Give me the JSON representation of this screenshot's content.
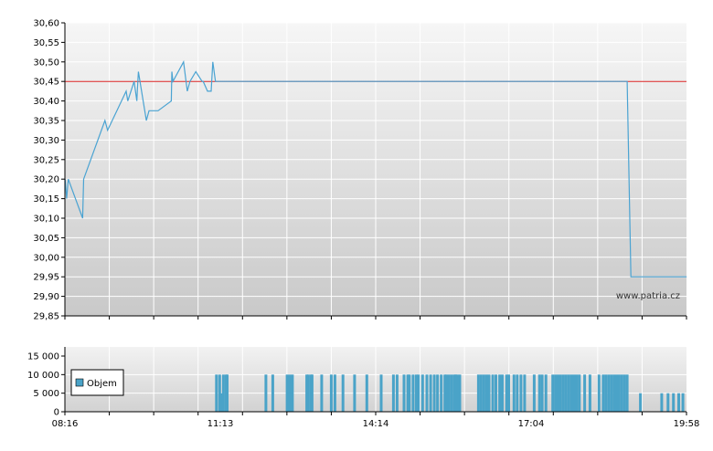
{
  "chart_data": [
    {
      "type": "line",
      "x_ticks": [
        "08:16",
        "11:13",
        "14:14",
        "17:04",
        "19:58"
      ],
      "y_ticks": [
        "30,60",
        "30,55",
        "30,50",
        "30,45",
        "30,40",
        "30,35",
        "30,30",
        "30,25",
        "30,20",
        "30,15",
        "30,10",
        "30,05",
        "30,00",
        "29,95",
        "29,90",
        "29,85"
      ],
      "ylim": [
        29.85,
        30.6
      ],
      "xlim_hours": [
        8.2667,
        19.9667
      ],
      "reference_line": 30.45,
      "watermark": "www.patria.cz",
      "grid": true,
      "series": [
        {
          "x": [
            8.27,
            8.3,
            8.33,
            8.6,
            8.62,
            9.02,
            9.07,
            9.42,
            9.45,
            9.57,
            9.62,
            9.63,
            9.65,
            9.8,
            9.85,
            10.0,
            10.02,
            10.27,
            10.28,
            10.3,
            10.5,
            10.57,
            10.62,
            10.73,
            10.85,
            10.87,
            10.95,
            11.02,
            11.05,
            11.1,
            18.85,
            18.92,
            19.97
          ],
          "y": [
            30.2,
            30.15,
            30.2,
            30.1,
            30.2,
            30.35,
            30.325,
            30.425,
            30.4,
            30.45,
            30.4,
            30.425,
            30.475,
            30.35,
            30.375,
            30.375,
            30.375,
            30.4,
            30.475,
            30.45,
            30.5,
            30.425,
            30.45,
            30.475,
            30.45,
            30.45,
            30.425,
            30.425,
            30.5,
            30.45,
            30.45,
            29.95,
            29.95
          ]
        }
      ]
    },
    {
      "type": "bar",
      "y_ticks": [
        "15 000",
        "10 000",
        "5 000",
        "0"
      ],
      "ylim": [
        0,
        15000
      ],
      "legend": "Objem",
      "legend_color": "#4aa3c8",
      "series": [
        {
          "x": [
            11.12,
            11.18,
            11.2,
            11.25,
            11.3,
            11.32,
            12.05,
            12.18,
            12.45,
            12.5,
            12.55,
            12.82,
            12.85,
            12.9,
            12.92,
            13.1,
            13.28,
            13.35,
            13.5,
            13.72,
            13.95,
            14.22,
            14.45,
            14.52,
            14.65,
            14.72,
            14.75,
            14.82,
            14.88,
            14.92,
            15.0,
            15.08,
            15.15,
            15.22,
            15.28,
            15.35,
            15.42,
            15.45,
            15.5,
            15.55,
            15.6,
            15.62,
            15.65,
            15.7,
            16.05,
            16.1,
            16.15,
            16.2,
            16.25,
            16.32,
            16.38,
            16.45,
            16.5,
            16.58,
            16.62,
            16.72,
            16.78,
            16.85,
            16.92,
            17.1,
            17.2,
            17.25,
            17.32,
            17.45,
            17.5,
            17.55,
            17.6,
            17.65,
            17.7,
            17.75,
            17.8,
            17.85,
            17.9,
            17.95,
            18.05,
            18.15,
            18.32,
            18.4,
            18.45,
            18.5,
            18.55,
            18.6,
            18.65,
            18.7,
            18.75,
            18.8,
            18.85,
            19.1,
            19.5,
            19.62,
            19.72,
            19.82,
            19.9
          ],
          "values": [
            10000,
            10000,
            5000,
            10000,
            10000,
            10000,
            10000,
            10000,
            10000,
            10000,
            10000,
            10000,
            10000,
            10000,
            10000,
            10000,
            10000,
            10000,
            10000,
            10000,
            10000,
            10000,
            10000,
            10000,
            10000,
            10000,
            10000,
            10000,
            10000,
            10000,
            10000,
            10000,
            10000,
            10000,
            10000,
            10000,
            10000,
            10000,
            10000,
            10000,
            10000,
            10000,
            10000,
            10000,
            10000,
            10000,
            10000,
            10000,
            10000,
            10000,
            10000,
            10000,
            10000,
            10000,
            10000,
            10000,
            10000,
            10000,
            10000,
            10000,
            10000,
            10000,
            10000,
            10000,
            10000,
            10000,
            10000,
            10000,
            10000,
            10000,
            10000,
            10000,
            10000,
            10000,
            10000,
            10000,
            10000,
            10000,
            10000,
            10000,
            10000,
            10000,
            10000,
            10000,
            10000,
            10000,
            10000,
            5000,
            5000,
            5000,
            5000,
            5000,
            5000
          ]
        }
      ]
    }
  ]
}
